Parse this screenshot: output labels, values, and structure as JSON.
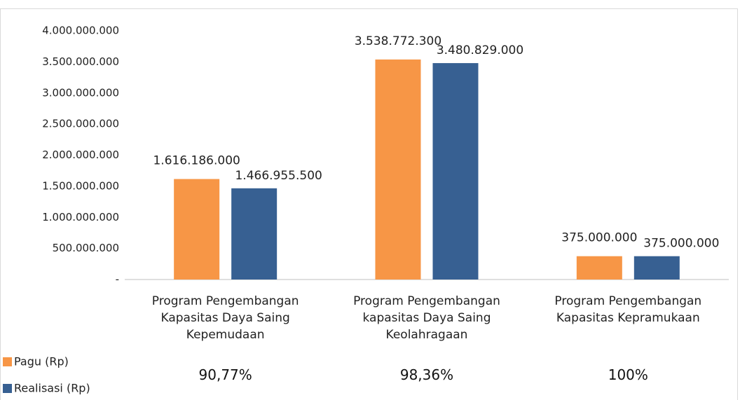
{
  "chart_data": {
    "type": "bar",
    "categories": [
      "Program Pengembangan Kapasitas Daya Saing Kepemudaan",
      "Program Pengembangan kapasitas Daya Saing Keolahragaan",
      "Program Pengembangan Kapasitas Kepramukaan"
    ],
    "series": [
      {
        "name": "Pagu (Rp)",
        "color": "#f79646",
        "values": [
          1616186000,
          3538772300,
          375000000
        ],
        "value_labels": [
          "1.616.186.000",
          "3.538.772.300",
          "375.000.000"
        ]
      },
      {
        "name": "Realisasi (Rp)",
        "color": "#376092",
        "values": [
          1466955500,
          3480829000,
          375000000
        ],
        "value_labels": [
          "1.466.955.500",
          "3.480.829.000",
          "375.000.000"
        ]
      }
    ],
    "annotations": [
      "90,77%",
      "98,36%",
      "100%"
    ],
    "ylim": [
      0,
      4000000000
    ],
    "yticks": [
      {
        "value": 0,
        "label": "-"
      },
      {
        "value": 500000000,
        "label": "500.000.000"
      },
      {
        "value": 1000000000,
        "label": "1.000.000.000"
      },
      {
        "value": 1500000000,
        "label": "1.500.000.000"
      },
      {
        "value": 2000000000,
        "label": "2.000.000.000"
      },
      {
        "value": 2500000000,
        "label": "2.500.000.000"
      },
      {
        "value": 3000000000,
        "label": "3.000.000.000"
      },
      {
        "value": 3500000000,
        "label": "3.500.000.000"
      },
      {
        "value": 4000000000,
        "label": "4.000.000.000"
      }
    ],
    "grid": false,
    "legend": "bottom-left"
  }
}
